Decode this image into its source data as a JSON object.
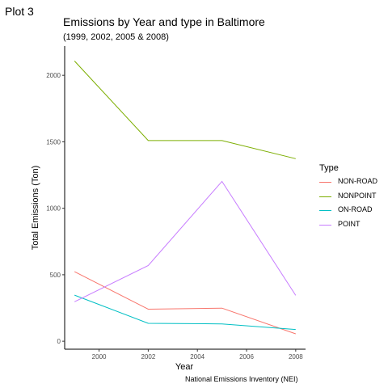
{
  "plot_tag": "Plot 3",
  "chart_data": {
    "type": "line",
    "title": "Emissions by Year and type in Baltimore",
    "subtitle": "(1999, 2002, 2005 & 2008)",
    "xlabel": "Year",
    "ylabel": "Total Emissions (Ton)",
    "caption": "National Emissions Inventory (NEI)",
    "x": [
      1999,
      2002,
      2005,
      2008
    ],
    "xlim": [
      1998.6,
      2008.4
    ],
    "ylim": [
      -60,
      2220
    ],
    "xticks": [
      2000,
      2002,
      2004,
      2006,
      2008
    ],
    "yticks": [
      0,
      500,
      1000,
      1500,
      2000
    ],
    "grid": false,
    "legend": {
      "title": "Type",
      "placement": "right"
    },
    "series": [
      {
        "name": "NON-ROAD",
        "color": "#f8766d",
        "values": [
          522.9,
          240.8,
          248.9,
          55.8
        ]
      },
      {
        "name": "NONPOINT",
        "color": "#7cae00",
        "values": [
          2107.6,
          1509.5,
          1509.5,
          1373.2
        ]
      },
      {
        "name": "ON-ROAD",
        "color": "#00bfc4",
        "values": [
          346.8,
          134.3,
          130.4,
          88.3
        ]
      },
      {
        "name": "POINT",
        "color": "#c77cff",
        "values": [
          296.8,
          569.3,
          1202.5,
          344.97
        ]
      }
    ]
  }
}
